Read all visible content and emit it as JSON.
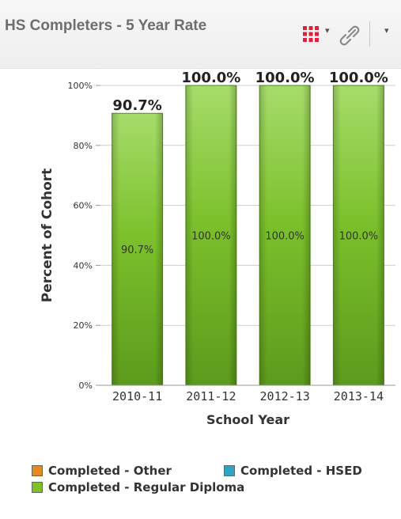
{
  "header": {
    "title": "HS Completers - 5 Year Rate",
    "toolbar": {
      "grid_icon": "grid-menu-icon",
      "link_icon": "link-icon",
      "dropdown_arrow": "▾"
    }
  },
  "chart_data": {
    "type": "bar",
    "categories": [
      "2010-11",
      "2011-12",
      "2012-13",
      "2013-14"
    ],
    "series": [
      {
        "name": "Completed - Regular Diploma",
        "values": [
          90.7,
          100.0,
          100.0,
          100.0
        ],
        "color": "#7cc12c"
      },
      {
        "name": "Completed - Other",
        "values": [
          0,
          0,
          0,
          0
        ],
        "color": "#e58a1f"
      },
      {
        "name": "Completed - HSED",
        "values": [
          0,
          0,
          0,
          0
        ],
        "color": "#2aa6c4"
      }
    ],
    "total_labels": [
      "90.7%",
      "100.0%",
      "100.0%",
      "100.0%"
    ],
    "bar_labels": [
      "90.7%",
      "100.0%",
      "100.0%",
      "100.0%"
    ],
    "xlabel": "School Year",
    "ylabel": "Percent of Cohort",
    "ylim": [
      0,
      100
    ],
    "yticks": [
      "0%",
      "20%",
      "40%",
      "60%",
      "80%",
      "100%"
    ],
    "ytick_values": [
      0,
      20,
      40,
      60,
      80,
      100
    ],
    "grid": true,
    "legend_position": "bottom"
  },
  "legend": {
    "items": [
      {
        "label": "Completed - Other",
        "color": "#e58a1f"
      },
      {
        "label": "Completed - HSED",
        "color": "#2aa6c4"
      },
      {
        "label": "Completed - Regular Diploma",
        "color": "#7cc12c"
      }
    ]
  }
}
